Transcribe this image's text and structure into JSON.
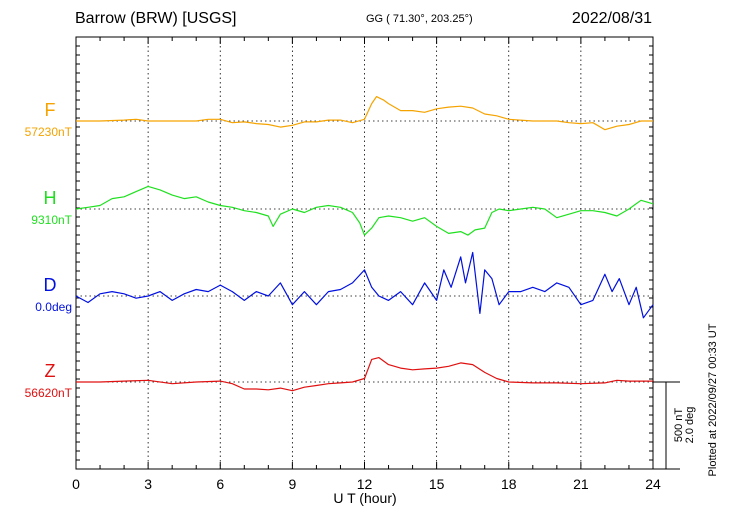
{
  "header": {
    "station": "Barrow (BRW)  [USGS]",
    "coords": "GG ( 71.30°, 203.25°)",
    "date": "2022/08/31"
  },
  "footer": {
    "plotted": "Plotted at 2022/09/27 00:33 UT"
  },
  "scale_bar": {
    "nt_label": "500 nT",
    "deg_label": "2.0 deg"
  },
  "chart_data": {
    "type": "line",
    "xlabel": "U T (hour)",
    "xlim": [
      0,
      24
    ],
    "xticks": [
      0,
      3,
      6,
      9,
      12,
      15,
      18,
      21,
      24
    ],
    "xtick_labels": [
      "0",
      "3",
      "6",
      "9",
      "12",
      "15",
      "18",
      "21",
      "24"
    ],
    "grid": true,
    "scale": {
      "nt_per_bar": 500,
      "deg_per_bar": 2.0
    },
    "series": [
      {
        "name": "F",
        "base_label": "57230nT",
        "color": "#f5a300",
        "unit": "nT",
        "x": [
          0,
          1,
          2,
          2.5,
          3,
          4,
          5,
          5.5,
          6,
          6.5,
          7,
          7.5,
          8,
          8.5,
          9,
          9.5,
          10,
          10.5,
          11,
          11.5,
          12,
          12.3,
          12.5,
          12.8,
          13,
          13.5,
          14,
          14.5,
          15,
          15.5,
          16,
          16.5,
          17,
          17.5,
          18,
          19,
          20,
          20.5,
          21,
          21.5,
          22,
          22.5,
          23,
          23.5,
          24
        ],
        "values": [
          0,
          0,
          5,
          10,
          0,
          0,
          0,
          10,
          10,
          -10,
          -5,
          -15,
          -20,
          -35,
          -25,
          -5,
          -5,
          5,
          5,
          -10,
          10,
          100,
          140,
          120,
          100,
          60,
          60,
          50,
          70,
          80,
          85,
          75,
          40,
          30,
          10,
          0,
          0,
          -10,
          -15,
          -10,
          -50,
          -30,
          -20,
          0,
          0
        ]
      },
      {
        "name": "H",
        "base_label": "9310nT",
        "color": "#1fe01f",
        "unit": "nT",
        "x": [
          0,
          0.5,
          1,
          1.5,
          2,
          2.5,
          3,
          3.5,
          4,
          4.5,
          5,
          5.5,
          6,
          6.5,
          7,
          7.5,
          8,
          8.2,
          8.5,
          9,
          9.5,
          10,
          10.5,
          11,
          11.5,
          11.8,
          12,
          12.3,
          12.6,
          13,
          13.5,
          14,
          14.5,
          15,
          15.5,
          16,
          16.3,
          16.6,
          17,
          17.3,
          17.6,
          18,
          18.5,
          19,
          19.5,
          20,
          20.5,
          21,
          21.5,
          22,
          22.5,
          23,
          23.5,
          24
        ],
        "values": [
          0,
          10,
          20,
          60,
          70,
          100,
          130,
          110,
          80,
          60,
          70,
          40,
          20,
          10,
          -10,
          -20,
          -40,
          -100,
          -30,
          0,
          -20,
          10,
          20,
          10,
          -20,
          -80,
          -150,
          -110,
          -50,
          -40,
          -50,
          -70,
          -50,
          -100,
          -140,
          -130,
          -150,
          -120,
          -110,
          -20,
          0,
          -10,
          0,
          10,
          0,
          -50,
          -30,
          -10,
          -10,
          -20,
          -40,
          0,
          50,
          30
        ]
      },
      {
        "name": "D",
        "base_label": "0.0deg",
        "color": "#0010e0",
        "unit": "deg",
        "x": [
          0,
          0.5,
          1,
          1.5,
          2,
          2.5,
          3,
          3.5,
          4,
          4.5,
          5,
          5.5,
          6,
          6.5,
          7,
          7.5,
          8,
          8.5,
          9,
          9.5,
          10,
          10.5,
          11,
          11.5,
          12,
          12.3,
          12.6,
          13,
          13.5,
          14,
          14.5,
          15,
          15.3,
          15.6,
          16,
          16.2,
          16.5,
          16.8,
          17,
          17.3,
          17.6,
          18,
          18.5,
          19,
          19.5,
          20,
          20.5,
          21,
          21.5,
          22,
          22.3,
          22.6,
          23,
          23.3,
          23.6,
          24
        ],
        "values": [
          0,
          -0.15,
          0.05,
          0.1,
          0.05,
          -0.05,
          0,
          0.1,
          -0.1,
          0.05,
          0.15,
          0.1,
          0.25,
          0.1,
          -0.1,
          0.1,
          0,
          0.3,
          -0.2,
          0.1,
          -0.2,
          0.1,
          0.15,
          0.3,
          0.6,
          0.2,
          0,
          -0.1,
          0.1,
          -0.2,
          0.3,
          -0.1,
          0.6,
          0.2,
          0.9,
          0.3,
          1.0,
          -0.4,
          0.6,
          0.4,
          -0.2,
          0.1,
          0.1,
          0.2,
          0.1,
          0.3,
          0.2,
          -0.2,
          -0.1,
          0.5,
          0.1,
          0.4,
          -0.2,
          0.2,
          -0.5,
          -0.2
        ]
      },
      {
        "name": "Z",
        "base_label": "56620nT",
        "color": "#e01010",
        "unit": "nT",
        "x": [
          0,
          1,
          2,
          3,
          4,
          5,
          6,
          6.5,
          7,
          7.5,
          8,
          8.5,
          9,
          9.5,
          10,
          10.5,
          11,
          11.5,
          12,
          12.3,
          12.6,
          13,
          13.5,
          14,
          14.5,
          15,
          15.5,
          16,
          16.5,
          17,
          17.5,
          18,
          19,
          20,
          21,
          22,
          22.5,
          23,
          23.5,
          24
        ],
        "values": [
          0,
          0,
          5,
          10,
          -10,
          0,
          5,
          -10,
          -40,
          -40,
          -45,
          -35,
          -50,
          -30,
          -20,
          -10,
          -5,
          0,
          20,
          130,
          140,
          100,
          80,
          70,
          75,
          80,
          90,
          110,
          100,
          55,
          20,
          0,
          -5,
          -5,
          -10,
          -5,
          10,
          5,
          5,
          5
        ]
      }
    ]
  }
}
